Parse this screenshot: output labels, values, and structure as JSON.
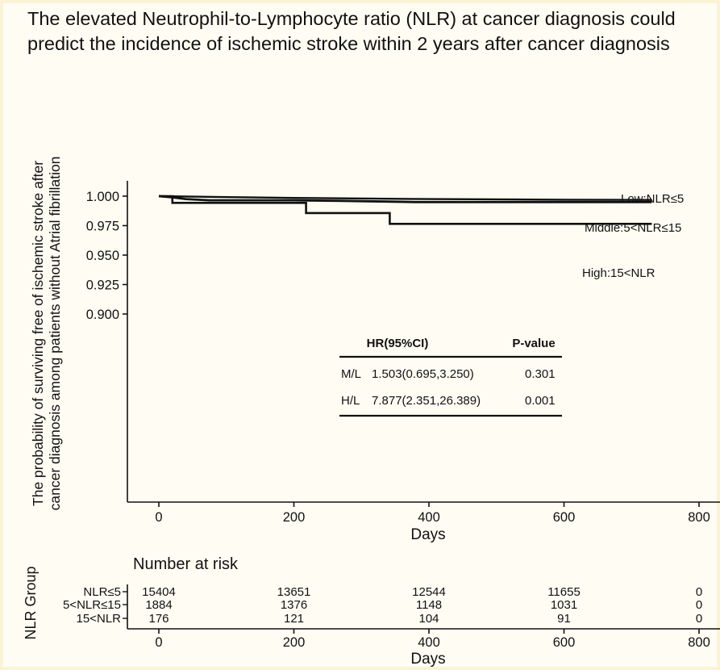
{
  "title": "The elevated Neutrophil-to-Lymphocyte ratio (NLR) at cancer diagnosis could predict the incidence of ischemic stroke within 2 years after cancer diagnosis",
  "chart_data": {
    "type": "line",
    "subtype": "kaplan-meier step",
    "ylabel_line1": "The probability of surviving free of ischemic stroke after",
    "ylabel_line2": "cancer diagnosis among patients without Atrial fibrillation",
    "xlabel": "Days",
    "xlim": [
      -10,
      830
    ],
    "ylim": [
      0.896,
      1.005
    ],
    "x_ticks": [
      0,
      200,
      400,
      600,
      800
    ],
    "x_tick_labels": [
      "0",
      "200",
      "400",
      "600",
      "800"
    ],
    "y_ticks": [
      0.9,
      0.925,
      0.95,
      0.975,
      1.0
    ],
    "y_tick_labels": [
      "0.900",
      "0.925",
      "0.950",
      "0.975",
      "1.000"
    ],
    "grid": false,
    "series": [
      {
        "name": "Low:NLR≤5",
        "points": [
          [
            0,
            1.0
          ],
          [
            60,
            0.9995
          ],
          [
            200,
            0.9985
          ],
          [
            400,
            0.9975
          ],
          [
            600,
            0.997
          ],
          [
            730,
            0.9968
          ]
        ]
      },
      {
        "name": "Middle:5<NLR≤15",
        "points": [
          [
            0,
            1.0
          ],
          [
            10,
            0.9995
          ],
          [
            20,
            0.999
          ],
          [
            40,
            0.9975
          ],
          [
            75,
            0.9965
          ],
          [
            200,
            0.9965
          ],
          [
            270,
            0.996
          ],
          [
            380,
            0.995
          ],
          [
            730,
            0.995
          ]
        ]
      },
      {
        "name": "High:15<NLR",
        "points": [
          [
            0,
            1.0
          ],
          [
            20,
            1.0
          ],
          [
            20,
            0.9943
          ],
          [
            218,
            0.9943
          ],
          [
            218,
            0.9857
          ],
          [
            342,
            0.9857
          ],
          [
            342,
            0.9765
          ],
          [
            730,
            0.9765
          ]
        ]
      }
    ],
    "hr_table": {
      "headers": [
        "HR(95%CI)",
        "P-value"
      ],
      "rows": [
        {
          "label": "M/L",
          "hr": "1.503(0.695,3.250)",
          "p": "0.301"
        },
        {
          "label": "H/L",
          "hr": "7.877(2.351,26.389)",
          "p": "0.001"
        }
      ]
    },
    "risk_table": {
      "title": "Number at risk",
      "group_axis_label": "NLR Group",
      "xlabel": "Days",
      "x_ticks": [
        0,
        200,
        400,
        600,
        800
      ],
      "x_tick_labels": [
        "0",
        "200",
        "400",
        "600",
        "800"
      ],
      "rows": [
        {
          "group": "NLR≤5",
          "values": [
            "15404",
            "13651",
            "12544",
            "11655",
            "0"
          ]
        },
        {
          "group": "5<NLR≤15",
          "values": [
            "1884",
            "1376",
            "1148",
            "1031",
            "0"
          ]
        },
        {
          "group": "15<NLR",
          "values": [
            "176",
            "121",
            "104",
            "91",
            "0"
          ]
        }
      ]
    }
  }
}
